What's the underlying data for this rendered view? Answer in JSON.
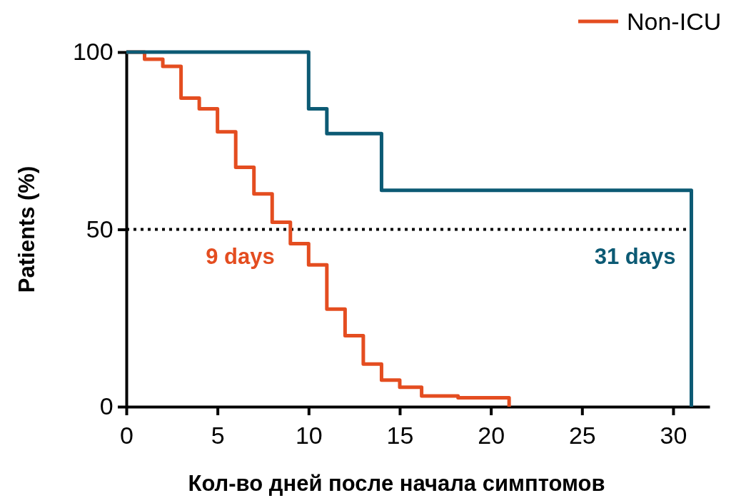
{
  "chart_data": {
    "type": "step",
    "xlabel": "Кол-во дней после начала симптомов",
    "ylabel": "Patients (%)",
    "xlim": [
      0,
      32
    ],
    "xticks": [
      0,
      5,
      10,
      15,
      20,
      25,
      30
    ],
    "ylim": [
      0,
      100
    ],
    "yticks": [
      0,
      50,
      100
    ],
    "grid": false,
    "legend": "top right",
    "marker": "none",
    "line_style": "solid",
    "series": [
      {
        "name": "Non-ICU",
        "color": "#e44d20",
        "x": [
          0,
          1,
          2,
          3,
          4,
          5,
          6,
          7,
          8,
          9,
          10,
          11,
          12,
          13,
          14,
          15,
          16.2,
          18.2,
          21
        ],
        "values": [
          100,
          98,
          96,
          87,
          84,
          77.5,
          67.5,
          60,
          52,
          46,
          40,
          27.5,
          20,
          12,
          7.5,
          5.5,
          3,
          2.5,
          0
        ]
      },
      {
        "color": "#0c5a74",
        "x": [
          0,
          10,
          11,
          14,
          31
        ],
        "values": [
          100,
          84,
          77,
          61,
          0
        ]
      }
    ],
    "ref_lines": [
      {
        "axis": "y",
        "value": 50,
        "color": "#000000",
        "line_style": "dotted"
      }
    ],
    "annotations": [
      {
        "text": "9 days",
        "x": 9,
        "y": 50
      },
      {
        "text": "31 days",
        "x": 31,
        "y": 50
      }
    ]
  }
}
